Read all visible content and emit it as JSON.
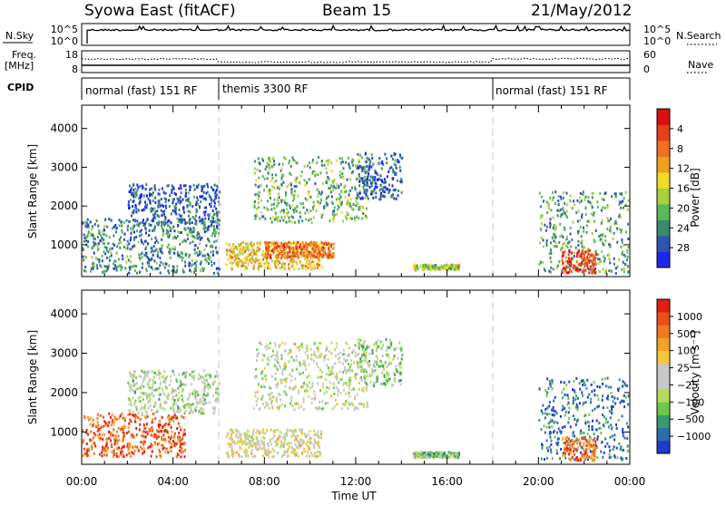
{
  "header": {
    "station": "Syowa East (fitACF)",
    "beam": "Beam 15",
    "date": "21/May/2012"
  },
  "top_panels": {
    "nsky_label": "N.Sky",
    "nsky_ticks": [
      "10^5",
      "10^0"
    ],
    "nsearch_label": "N.Search",
    "nsearch_ticks": [
      "10^5",
      "10^0"
    ],
    "freq_label": "Freq.",
    "freq_unit": "[MHz]",
    "freq_ticks": [
      "18",
      "8"
    ],
    "nave_label": "Nave",
    "nave_ticks": [
      "60",
      "0"
    ],
    "cpid_label": "CPID",
    "cpid_segments": [
      {
        "label": "normal (fast) 151 RF",
        "start_h": 0,
        "end_h": 6
      },
      {
        "label": "themis 3300 RF",
        "start_h": 6,
        "end_h": 18
      },
      {
        "label": "normal (fast) 151 RF",
        "start_h": 18,
        "end_h": 24
      }
    ]
  },
  "chart_data": [
    {
      "type": "heatmap",
      "title": "",
      "xlabel": "Time UT",
      "ylabel": "Slant Range [km]",
      "x_ticks": [
        "00:00",
        "04:00",
        "08:00",
        "12:00",
        "16:00",
        "20:00",
        "00:00"
      ],
      "xlim_hours": [
        0,
        24
      ],
      "y_ticks": [
        1000,
        2000,
        3000,
        4000
      ],
      "ylim": [
        180,
        4600
      ],
      "colorbar": {
        "label": "Power [dB]",
        "ticks": [
          "4",
          "8",
          "12",
          "16",
          "20",
          "24",
          "28"
        ],
        "colors": [
          "#1e28e6",
          "#2d55b5",
          "#3c8a6e",
          "#5ab85a",
          "#a8d040",
          "#f0dc28",
          "#f0a020",
          "#f07020",
          "#e84018",
          "#d81010"
        ]
      },
      "echo_regions": [
        {
          "t0": 0.0,
          "t1": 6.0,
          "r0": 300,
          "r1": 1700,
          "level": 0.25
        },
        {
          "t0": 2.0,
          "t1": 6.0,
          "r0": 1500,
          "r1": 2600,
          "level": 0.15
        },
        {
          "t0": 6.3,
          "t1": 10.5,
          "r0": 400,
          "r1": 1100,
          "level": 0.6
        },
        {
          "t0": 8.0,
          "t1": 11.0,
          "r0": 700,
          "r1": 1100,
          "level": 0.75
        },
        {
          "t0": 7.5,
          "t1": 12.5,
          "r0": 1600,
          "r1": 3300,
          "level": 0.35
        },
        {
          "t0": 12.0,
          "t1": 14.0,
          "r0": 2200,
          "r1": 3400,
          "level": 0.15
        },
        {
          "t0": 14.5,
          "t1": 16.5,
          "r0": 380,
          "r1": 520,
          "level": 0.45
        },
        {
          "t0": 20.0,
          "t1": 24.0,
          "r0": 300,
          "r1": 2400,
          "level": 0.3
        },
        {
          "t0": 21.0,
          "t1": 22.5,
          "r0": 300,
          "r1": 900,
          "level": 0.85
        }
      ]
    },
    {
      "type": "heatmap",
      "title": "",
      "xlabel": "Time UT",
      "ylabel": "Slant Range [km]",
      "x_ticks": [
        "00:00",
        "04:00",
        "08:00",
        "12:00",
        "16:00",
        "20:00",
        "00:00"
      ],
      "xlim_hours": [
        0,
        24
      ],
      "y_ticks": [
        1000,
        2000,
        3000,
        4000
      ],
      "ylim": [
        180,
        4600
      ],
      "colorbar": {
        "label": "Velocity [m s⁻¹]",
        "ticks": [
          "1000",
          "500",
          "100",
          "25",
          "−25",
          "−100",
          "−500",
          "−1000"
        ],
        "colors": [
          "#1e3ccd",
          "#2d6eaa",
          "#3c9a6e",
          "#6ec850",
          "#b4dc5a",
          "#c8c8c8",
          "#c8c8c8",
          "#f5c83c",
          "#f5a028",
          "#f07820",
          "#e85018",
          "#e02010"
        ]
      },
      "echo_regions": [
        {
          "t0": 0.0,
          "t1": 4.5,
          "r0": 400,
          "r1": 1500,
          "level": 0.85
        },
        {
          "t0": 2.0,
          "t1": 6.0,
          "r0": 1500,
          "r1": 2600,
          "level": 0.4
        },
        {
          "t0": 6.3,
          "t1": 10.5,
          "r0": 400,
          "r1": 1100,
          "level": 0.5
        },
        {
          "t0": 7.5,
          "t1": 12.5,
          "r0": 1600,
          "r1": 3300,
          "level": 0.45
        },
        {
          "t0": 12.0,
          "t1": 14.0,
          "r0": 2200,
          "r1": 3400,
          "level": 0.35
        },
        {
          "t0": 14.5,
          "t1": 16.5,
          "r0": 380,
          "r1": 520,
          "level": 0.3
        },
        {
          "t0": 20.0,
          "t1": 24.0,
          "r0": 300,
          "r1": 2400,
          "level": 0.15
        },
        {
          "t0": 21.0,
          "t1": 22.5,
          "r0": 300,
          "r1": 900,
          "level": 0.8
        }
      ]
    }
  ]
}
